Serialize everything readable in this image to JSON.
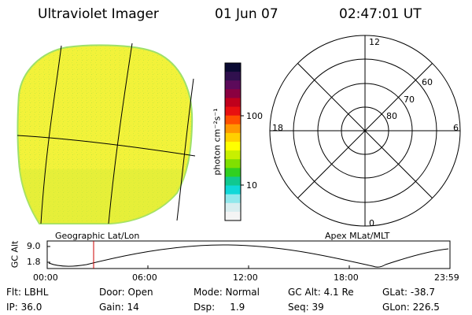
{
  "header": {
    "title": "Ultraviolet Imager",
    "date": "01 Jun 07",
    "time": "02:47:01 UT"
  },
  "colorbar": {
    "unit_label": "photon cm⁻²s⁻¹",
    "ticks": [
      "100",
      "10"
    ],
    "colors": [
      "#0a0a32",
      "#30104e",
      "#5c0a5a",
      "#8a0040",
      "#c0001c",
      "#e81010",
      "#ff5000",
      "#ff9800",
      "#ffd000",
      "#ffff00",
      "#c8f000",
      "#80e000",
      "#30d020",
      "#10c890",
      "#10d8d8",
      "#90e8ec",
      "#d8eef0",
      "#f4f4f4"
    ]
  },
  "left_panel": {
    "label": "Geographic Lat/Lon",
    "fill_color": "#f2f23a",
    "edge_color": "#9ee06a"
  },
  "right_panel": {
    "label": "Apex MLat/MLT",
    "mlt_labels": {
      "top": "12",
      "right": "6",
      "bottom": "0",
      "left": "18"
    },
    "lat_labels": [
      "60",
      "70",
      "80"
    ]
  },
  "altitude_plot": {
    "axis_label": "GC Alt",
    "ylabels": [
      "9.0",
      "1.8"
    ],
    "time_ticks": [
      "00:00",
      "06:00",
      "12:00",
      "18:00",
      "23:59"
    ],
    "marker_color": "#cc0000"
  },
  "info": {
    "row1": {
      "flt": "Flt: LBHL",
      "door": "Door: Open",
      "mode": "Mode: Normal",
      "gc_alt": "GC Alt: 4.1 Re",
      "glat": "GLat: -38.7"
    },
    "row2": {
      "ip": "IP: 36.0",
      "gain": "Gain: 14",
      "dsp": "Dsp:     1.9",
      "seq": "Seq: 39",
      "glon": "GLon: 226.5"
    }
  }
}
